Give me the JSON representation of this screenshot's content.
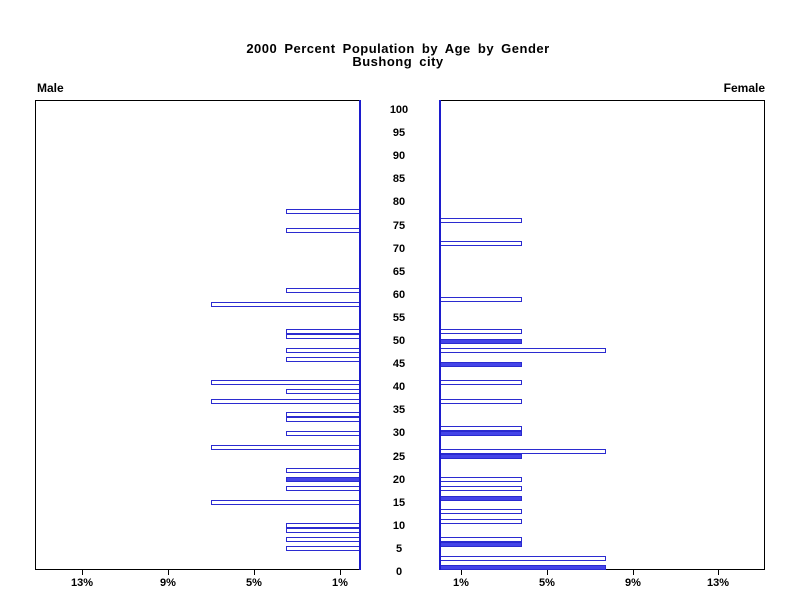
{
  "title": {
    "line1": "2000 Percent Population by Age by Gender",
    "line2": "Bushong city"
  },
  "panel_labels": {
    "male": "Male",
    "female": "Female"
  },
  "colors": {
    "bar_border": "#2b2bd0",
    "bar_fill_solid": "#4545e8",
    "bar_fill_outline": "#ffffff",
    "axis_line": "#1c1ccd",
    "frame": "#000000",
    "text": "#000000",
    "background": "#ffffff"
  },
  "chart_data": {
    "type": "bar",
    "variant": "population-pyramid",
    "title": "2000 Percent Population by Age by Gender",
    "subtitle": "Bushong city",
    "age_axis": {
      "min": 0,
      "max": 100,
      "step": 5,
      "tick_labels": [
        0,
        5,
        10,
        15,
        20,
        25,
        30,
        35,
        40,
        45,
        50,
        55,
        60,
        65,
        70,
        75,
        80,
        85,
        90,
        95,
        100
      ]
    },
    "pct_axis": {
      "ticks": [
        1,
        5,
        9,
        13
      ],
      "max": 15.2,
      "male_tick_labels": [
        "13%",
        "9%",
        "5%",
        "1%"
      ],
      "female_tick_labels": [
        "1%",
        "5%",
        "9%",
        "13%"
      ]
    },
    "grid": false,
    "legend": "none",
    "series": [
      {
        "name": "Male",
        "side": "left",
        "bars": [
          {
            "age": 78,
            "pct": 3.4,
            "solid": false
          },
          {
            "age": 74,
            "pct": 3.4,
            "solid": false
          },
          {
            "age": 61,
            "pct": 3.4,
            "solid": false
          },
          {
            "age": 58,
            "pct": 6.9,
            "solid": false
          },
          {
            "age": 52,
            "pct": 3.4,
            "solid": false
          },
          {
            "age": 51,
            "pct": 3.4,
            "solid": false
          },
          {
            "age": 48,
            "pct": 3.4,
            "solid": false
          },
          {
            "age": 46,
            "pct": 3.4,
            "solid": false
          },
          {
            "age": 41,
            "pct": 6.9,
            "solid": false
          },
          {
            "age": 39,
            "pct": 3.4,
            "solid": false
          },
          {
            "age": 37,
            "pct": 6.9,
            "solid": false
          },
          {
            "age": 34,
            "pct": 3.4,
            "solid": false
          },
          {
            "age": 33,
            "pct": 3.4,
            "solid": false
          },
          {
            "age": 30,
            "pct": 3.4,
            "solid": false
          },
          {
            "age": 27,
            "pct": 6.9,
            "solid": false
          },
          {
            "age": 22,
            "pct": 3.4,
            "solid": false
          },
          {
            "age": 20,
            "pct": 3.4,
            "solid": true
          },
          {
            "age": 18,
            "pct": 3.4,
            "solid": false
          },
          {
            "age": 15,
            "pct": 6.9,
            "solid": false
          },
          {
            "age": 10,
            "pct": 3.4,
            "solid": false
          },
          {
            "age": 9,
            "pct": 3.4,
            "solid": false
          },
          {
            "age": 7,
            "pct": 3.4,
            "solid": false
          },
          {
            "age": 5,
            "pct": 3.4,
            "solid": false
          }
        ]
      },
      {
        "name": "Female",
        "side": "right",
        "bars": [
          {
            "age": 76,
            "pct": 3.8,
            "solid": false
          },
          {
            "age": 71,
            "pct": 3.8,
            "solid": false
          },
          {
            "age": 59,
            "pct": 3.8,
            "solid": false
          },
          {
            "age": 52,
            "pct": 3.8,
            "solid": false
          },
          {
            "age": 50,
            "pct": 3.8,
            "solid": true
          },
          {
            "age": 48,
            "pct": 7.7,
            "solid": false
          },
          {
            "age": 45,
            "pct": 3.8,
            "solid": true
          },
          {
            "age": 41,
            "pct": 3.8,
            "solid": false
          },
          {
            "age": 37,
            "pct": 3.8,
            "solid": false
          },
          {
            "age": 31,
            "pct": 3.8,
            "solid": false
          },
          {
            "age": 30,
            "pct": 3.8,
            "solid": true
          },
          {
            "age": 26,
            "pct": 7.7,
            "solid": false
          },
          {
            "age": 25,
            "pct": 3.8,
            "solid": true
          },
          {
            "age": 20,
            "pct": 3.8,
            "solid": false
          },
          {
            "age": 18,
            "pct": 3.8,
            "solid": false
          },
          {
            "age": 16,
            "pct": 3.8,
            "solid": true
          },
          {
            "age": 13,
            "pct": 3.8,
            "solid": false
          },
          {
            "age": 11,
            "pct": 3.8,
            "solid": false
          },
          {
            "age": 7,
            "pct": 3.8,
            "solid": false
          },
          {
            "age": 6,
            "pct": 3.8,
            "solid": true
          },
          {
            "age": 3,
            "pct": 7.7,
            "solid": false
          },
          {
            "age": 1,
            "pct": 7.7,
            "solid": true
          }
        ]
      }
    ]
  }
}
